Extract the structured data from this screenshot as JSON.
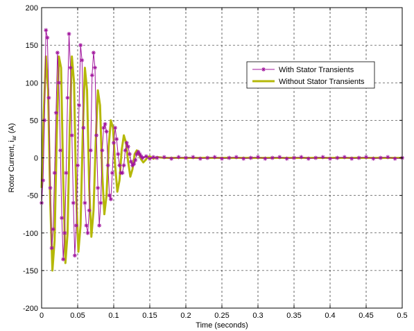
{
  "chart_data": {
    "type": "line",
    "title": "",
    "xlabel": "Time (seconds)",
    "ylabel_main": "Rotor Current, i",
    "ylabel_subscript": "ar",
    "ylabel_unit": " (A)",
    "xlim": [
      0,
      0.5
    ],
    "ylim": [
      -200,
      200
    ],
    "xticks": [
      0,
      0.05,
      0.1,
      0.15,
      0.2,
      0.25,
      0.3,
      0.35,
      0.4,
      0.45,
      0.5
    ],
    "xtick_labels": [
      "0",
      "0.05",
      "0.1",
      "0.15",
      "0.2",
      "0.25",
      "0.3",
      "0.35",
      "0.4",
      "0.45",
      "0.5"
    ],
    "yticks": [
      -200,
      -150,
      -100,
      -50,
      0,
      50,
      100,
      150,
      200
    ],
    "ytick_labels": [
      "-200",
      "-150",
      "-100",
      "-50",
      "0",
      "50",
      "100",
      "150",
      "200"
    ],
    "grid": true,
    "legend_position": "top-right",
    "series": [
      {
        "name": "With Stator Transients",
        "color": "#a0149c",
        "marker": "star",
        "x": [
          0,
          0.002,
          0.004,
          0.006,
          0.008,
          0.01,
          0.012,
          0.014,
          0.016,
          0.018,
          0.02,
          0.022,
          0.024,
          0.026,
          0.028,
          0.03,
          0.032,
          0.034,
          0.036,
          0.038,
          0.04,
          0.042,
          0.044,
          0.046,
          0.048,
          0.05,
          0.052,
          0.054,
          0.056,
          0.058,
          0.06,
          0.062,
          0.064,
          0.066,
          0.068,
          0.07,
          0.072,
          0.074,
          0.076,
          0.078,
          0.08,
          0.082,
          0.084,
          0.086,
          0.088,
          0.09,
          0.092,
          0.094,
          0.096,
          0.098,
          0.1,
          0.102,
          0.104,
          0.106,
          0.108,
          0.11,
          0.112,
          0.114,
          0.116,
          0.118,
          0.12,
          0.122,
          0.124,
          0.126,
          0.128,
          0.13,
          0.132,
          0.134,
          0.136,
          0.138,
          0.14,
          0.145,
          0.15,
          0.155,
          0.16,
          0.17,
          0.18,
          0.19,
          0.2,
          0.21,
          0.22,
          0.23,
          0.24,
          0.25,
          0.26,
          0.27,
          0.28,
          0.29,
          0.3,
          0.31,
          0.32,
          0.33,
          0.34,
          0.35,
          0.36,
          0.37,
          0.38,
          0.39,
          0.4,
          0.41,
          0.42,
          0.43,
          0.44,
          0.45,
          0.46,
          0.47,
          0.48,
          0.49,
          0.5
        ],
        "y": [
          -60,
          -30,
          50,
          170,
          160,
          80,
          -40,
          -120,
          -95,
          -20,
          60,
          140,
          100,
          10,
          -80,
          -135,
          -100,
          -20,
          80,
          165,
          120,
          30,
          -60,
          -130,
          -90,
          -10,
          70,
          150,
          130,
          40,
          -60,
          -90,
          -100,
          -70,
          10,
          110,
          140,
          120,
          30,
          -40,
          -90,
          -60,
          10,
          40,
          45,
          35,
          -10,
          -50,
          -55,
          -20,
          20,
          40,
          25,
          5,
          -10,
          -20,
          -20,
          -10,
          10,
          20,
          15,
          5,
          -5,
          -10,
          -8,
          -3,
          5,
          8,
          5,
          2,
          0,
          2,
          -1,
          1,
          0,
          1,
          -1,
          1,
          0,
          1,
          -1,
          0,
          1,
          -1,
          0,
          1,
          -1,
          0,
          1,
          -1,
          0,
          1,
          -1,
          0,
          1,
          -1,
          0,
          1,
          -1,
          0,
          1,
          -1,
          0,
          1,
          -1,
          0,
          1,
          -1,
          0
        ]
      },
      {
        "name": "Without Stator Transients",
        "color": "#b5b808",
        "marker": "none",
        "x": [
          0,
          0.003,
          0.006,
          0.009,
          0.012,
          0.015,
          0.018,
          0.021,
          0.024,
          0.027,
          0.03,
          0.033,
          0.036,
          0.039,
          0.042,
          0.045,
          0.048,
          0.051,
          0.054,
          0.057,
          0.06,
          0.063,
          0.066,
          0.069,
          0.072,
          0.075,
          0.078,
          0.081,
          0.084,
          0.087,
          0.09,
          0.093,
          0.096,
          0.099,
          0.102,
          0.105,
          0.108,
          0.111,
          0.114,
          0.117,
          0.12,
          0.123,
          0.126,
          0.129,
          0.132,
          0.135,
          0.138,
          0.141,
          0.144,
          0.147,
          0.15,
          0.155,
          0.16,
          0.17,
          0.18,
          0.19,
          0.2,
          0.22,
          0.24,
          0.26,
          0.28,
          0.3,
          0.32,
          0.34,
          0.36,
          0.38,
          0.4,
          0.42,
          0.44,
          0.46,
          0.48,
          0.5
        ],
        "y": [
          -40,
          60,
          135,
          90,
          -60,
          -150,
          -110,
          30,
          135,
          120,
          -30,
          -140,
          -100,
          40,
          135,
          100,
          -50,
          -125,
          -90,
          30,
          120,
          90,
          -40,
          -105,
          -70,
          20,
          90,
          70,
          -20,
          -75,
          -50,
          15,
          50,
          40,
          -10,
          -45,
          -30,
          10,
          30,
          20,
          -5,
          -25,
          -15,
          5,
          10,
          5,
          -2,
          -6,
          -3,
          1,
          2,
          -1,
          1,
          0,
          0,
          0,
          0,
          0,
          0,
          0,
          0,
          0,
          0,
          0,
          0,
          0,
          0,
          0,
          0,
          0,
          0,
          0
        ]
      }
    ]
  }
}
